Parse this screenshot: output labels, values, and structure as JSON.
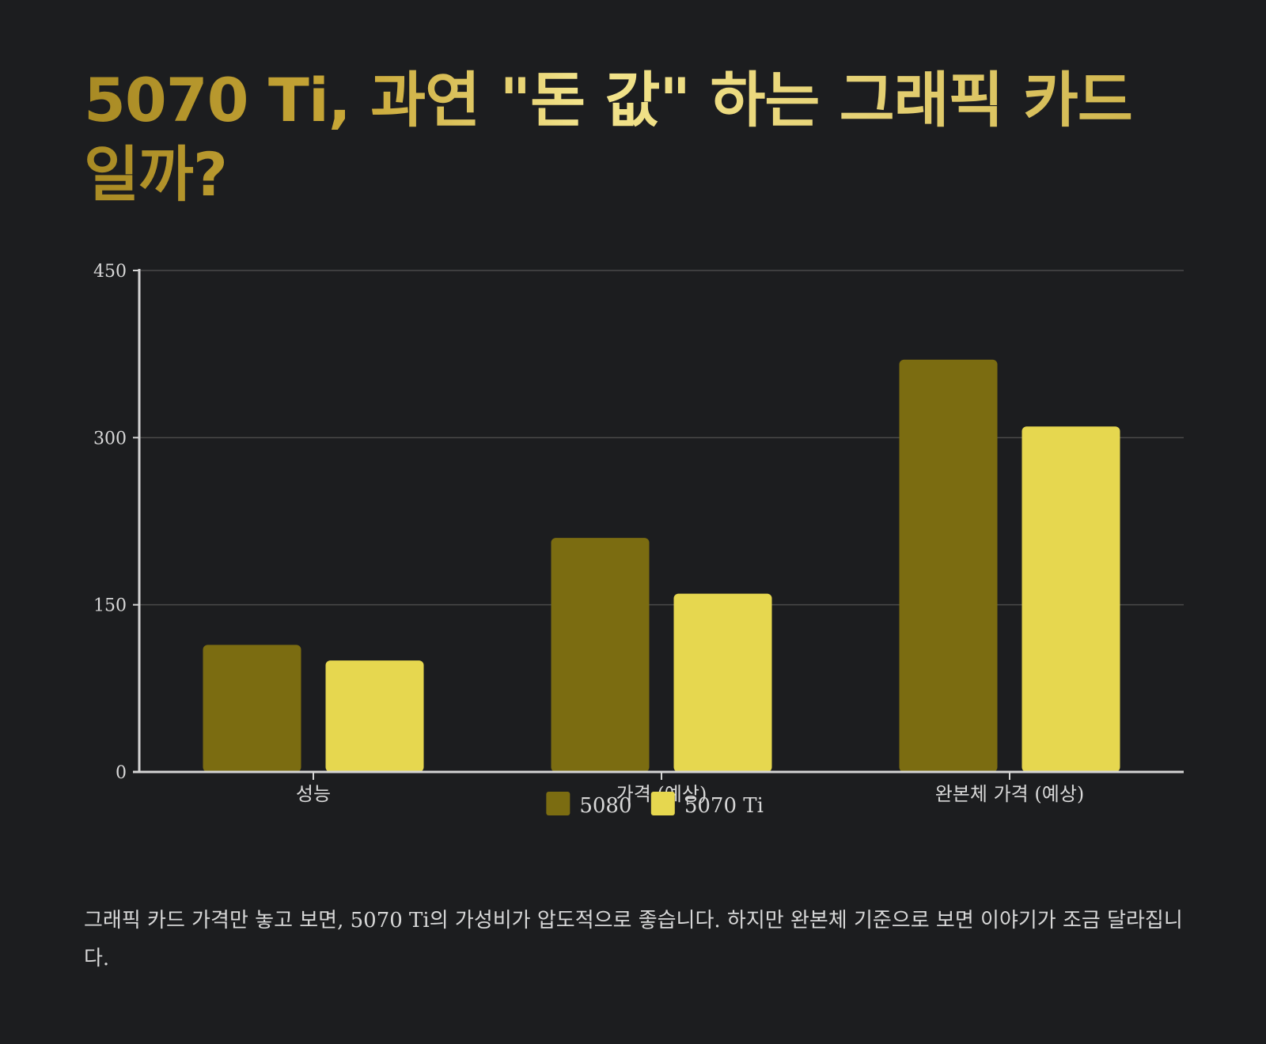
{
  "title": "5070 Ti, 과연 \"돈 값\" 하는 그래픽 카드 일까?",
  "description": "그래픽 카드 가격만 놓고 보면, 5070 Ti의 가성비가 압도적으로 좋습니다. 하지만 완본체 기준으로 보면 이야기가 조금 달라집니다.",
  "colors": {
    "background": "#1c1d1f",
    "series_5080": "#7b6c11",
    "series_5070ti": "#e6d74f",
    "axis": "#d4d4d4",
    "grid": "#4a4a4a",
    "text": "#d8d8d8"
  },
  "chart_data": {
    "type": "bar",
    "categories": [
      "성능",
      "가격 (예상)",
      "완본체 가격 (예상)"
    ],
    "series": [
      {
        "name": "5080",
        "values": [
          114,
          210,
          370
        ]
      },
      {
        "name": "5070 Ti",
        "values": [
          100,
          160,
          310
        ]
      }
    ],
    "yticks": [
      0,
      150,
      300,
      450
    ],
    "ylim": [
      0,
      450
    ],
    "grid": true,
    "legend": "bottom-center"
  }
}
